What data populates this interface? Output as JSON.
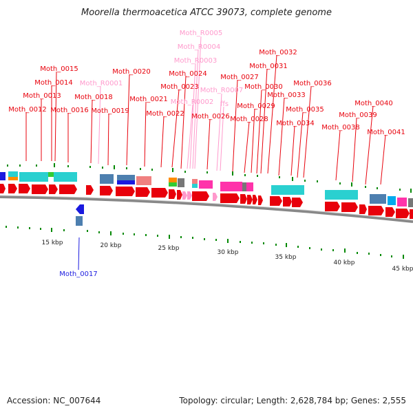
{
  "title": "Moorella thermoacetica ATCC 39073, complete genome",
  "footer": {
    "accession": "Accession: NC_007644",
    "summary": "Topology: circular; Length: 2,628,784 bp; Genes: 2,555"
  },
  "colors": {
    "gene": "#e8000b",
    "rna": "#ff99cc",
    "minus_gene": "#1a1adf",
    "tick": "#008800",
    "backbone": "#888888"
  },
  "ticks": [
    "15 kbp",
    "20 kbp",
    "25 kbp",
    "30 kbp",
    "35 kbp",
    "40 kbp",
    "45 kbp"
  ],
  "labels": [
    {
      "text": "Moth_0012",
      "kind": "gene"
    },
    {
      "text": "Moth_0013",
      "kind": "gene"
    },
    {
      "text": "Moth_0014",
      "kind": "gene"
    },
    {
      "text": "Moth_0015",
      "kind": "gene"
    },
    {
      "text": "Moth_0016",
      "kind": "gene"
    },
    {
      "text": "Moth_R0001",
      "kind": "rna"
    },
    {
      "text": "Moth_0018",
      "kind": "gene"
    },
    {
      "text": "Moth_0019",
      "kind": "gene"
    },
    {
      "text": "Moth_0020",
      "kind": "gene"
    },
    {
      "text": "Moth_0021",
      "kind": "gene"
    },
    {
      "text": "Moth_0022",
      "kind": "gene"
    },
    {
      "text": "Moth_0023",
      "kind": "gene"
    },
    {
      "text": "Moth_0024",
      "kind": "gene"
    },
    {
      "text": "Moth_R0002",
      "kind": "rna"
    },
    {
      "text": "Moth_R0003",
      "kind": "rna"
    },
    {
      "text": "Moth_R0004",
      "kind": "rna"
    },
    {
      "text": "Moth_R0005",
      "kind": "rna"
    },
    {
      "text": "Moth_0026",
      "kind": "gene"
    },
    {
      "text": "Moth_R0007",
      "kind": "rna"
    },
    {
      "text": "ffs",
      "kind": "rna"
    },
    {
      "text": "Moth_0027",
      "kind": "gene"
    },
    {
      "text": "Moth_0028",
      "kind": "gene"
    },
    {
      "text": "Moth_0029",
      "kind": "gene"
    },
    {
      "text": "Moth_0030",
      "kind": "gene"
    },
    {
      "text": "Moth_0031",
      "kind": "gene"
    },
    {
      "text": "Moth_0032",
      "kind": "gene"
    },
    {
      "text": "Moth_0033",
      "kind": "gene"
    },
    {
      "text": "Moth_0034",
      "kind": "gene"
    },
    {
      "text": "Moth_0035",
      "kind": "gene"
    },
    {
      "text": "Moth_0036",
      "kind": "gene"
    },
    {
      "text": "Moth_0038",
      "kind": "gene"
    },
    {
      "text": "Moth_0039",
      "kind": "gene"
    },
    {
      "text": "Moth_0040",
      "kind": "gene"
    },
    {
      "text": "Moth_0041",
      "kind": "gene"
    },
    {
      "text": "Moth_0017",
      "kind": "minus_gene"
    }
  ]
}
